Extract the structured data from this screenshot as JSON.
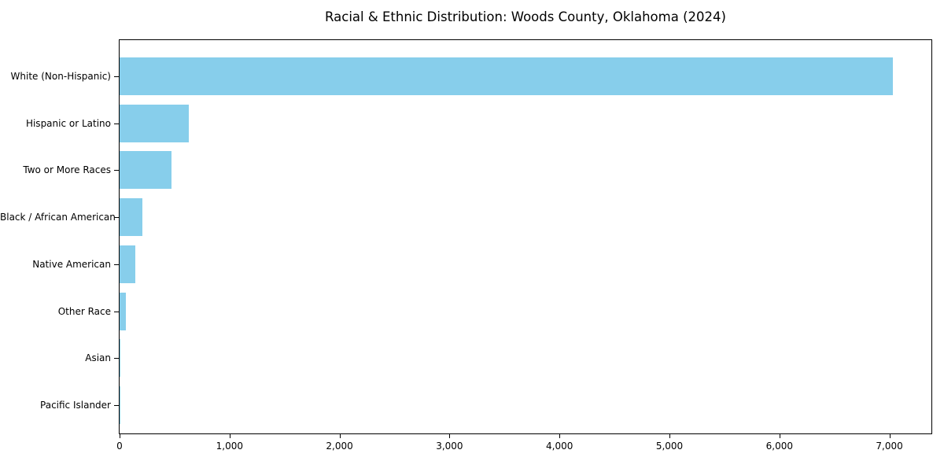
{
  "chart_data": {
    "type": "bar",
    "orientation": "horizontal",
    "title": "Racial & Ethnic Distribution: Woods County, Oklahoma (2024)",
    "categories": [
      "White (Non-Hispanic)",
      "Hispanic or Latino",
      "Two or More Races",
      "Black / African American",
      "Native American",
      "Other Race",
      "Asian",
      "Pacific Islander"
    ],
    "values": [
      7030,
      630,
      470,
      205,
      145,
      57,
      8,
      2
    ],
    "xlabel": "",
    "ylabel": "",
    "xlim": [
      0,
      7382
    ],
    "xticks": [
      0,
      1000,
      2000,
      3000,
      4000,
      5000,
      6000,
      7000
    ],
    "xtick_labels": [
      "0",
      "1,000",
      "2,000",
      "3,000",
      "4,000",
      "5,000",
      "6,000",
      "7,000"
    ],
    "bar_color": "#87CEEB",
    "axis_color": "#000000",
    "text_color": "#000000",
    "background_color": "#FFFFFF",
    "grid": false,
    "legend": null
  }
}
